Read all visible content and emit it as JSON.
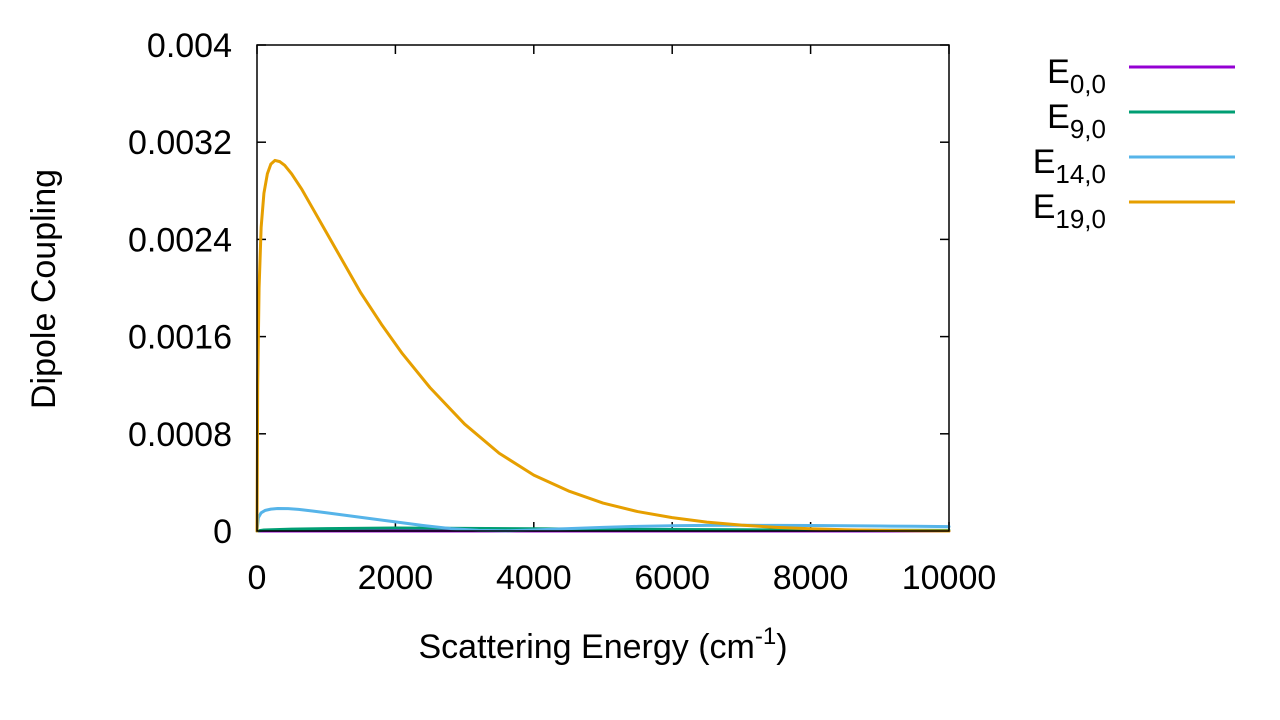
{
  "chart_data": {
    "type": "line",
    "xlabel": "Scattering Energy (cm",
    "xlabel_sup": "-1",
    "xlabel_close": ")",
    "ylabel": "Dipole Coupling",
    "xlim": [
      0,
      10000
    ],
    "ylim": [
      0,
      0.004
    ],
    "xticks": [
      {
        "value": 0,
        "label": "0"
      },
      {
        "value": 2000,
        "label": "2000"
      },
      {
        "value": 4000,
        "label": "4000"
      },
      {
        "value": 6000,
        "label": "6000"
      },
      {
        "value": 8000,
        "label": "8000"
      },
      {
        "value": 10000,
        "label": "10000"
      }
    ],
    "yticks": [
      {
        "value": 0,
        "label": "0"
      },
      {
        "value": 0.0008,
        "label": "0.0008"
      },
      {
        "value": 0.0016,
        "label": "0.0016"
      },
      {
        "value": 0.0024,
        "label": "0.0024"
      },
      {
        "value": 0.0032,
        "label": "0.0032"
      },
      {
        "value": 0.004,
        "label": "0.004"
      }
    ],
    "legend_position": "outside-right-top",
    "series": [
      {
        "name": "E0,0",
        "main": "E",
        "sub": "0,0",
        "color": "#9400d3",
        "x": [
          0,
          2000,
          4000,
          6000,
          8000,
          10000
        ],
        "y": [
          0.0,
          0.0,
          0.0,
          0.0,
          0.0,
          0.0
        ]
      },
      {
        "name": "E9,0",
        "main": "E",
        "sub": "9,0",
        "color": "#009e73",
        "x": [
          0,
          100,
          500,
          1000,
          2000,
          3000,
          4000,
          5000,
          6000,
          7000,
          8000,
          9000,
          10000
        ],
        "y": [
          0.0,
          8e-06,
          1.5e-05,
          2e-05,
          2.5e-05,
          2.2e-05,
          1.8e-05,
          1.4e-05,
          1.2e-05,
          1e-05,
          8e-06,
          6e-06,
          5e-06
        ]
      },
      {
        "name": "E14,0",
        "main": "E",
        "sub": "14,0",
        "color": "#56b4e9",
        "x": [
          0,
          20,
          60,
          120,
          200,
          300,
          450,
          600,
          800,
          1000,
          1300,
          1600,
          2000,
          2400,
          2800,
          3200,
          3600,
          4000,
          4500,
          5000,
          5500,
          6000,
          6500,
          7000,
          7500,
          8000,
          8500,
          9000,
          9500,
          10000
        ],
        "y": [
          0.0,
          0.00011,
          0.00015,
          0.00017,
          0.00018,
          0.000185,
          0.000184,
          0.000178,
          0.000165,
          0.00015,
          0.000128,
          0.000105,
          7.5e-05,
          4.5e-05,
          2e-05,
          5e-06,
          2e-06,
          8e-06,
          2e-05,
          3e-05,
          3.8e-05,
          4.3e-05,
          4.6e-05,
          4.7e-05,
          4.6e-05,
          4.5e-05,
          4.3e-05,
          4.1e-05,
          3.9e-05,
          3.6e-05
        ]
      },
      {
        "name": "E19,0",
        "main": "E",
        "sub": "19,0",
        "color": "#e69f00",
        "x": [
          0,
          10,
          30,
          60,
          100,
          150,
          200,
          260,
          330,
          400,
          500,
          650,
          800,
          1000,
          1250,
          1500,
          1800,
          2100,
          2500,
          3000,
          3500,
          4000,
          4500,
          5000,
          5500,
          6000,
          6500,
          7000,
          7500,
          8000,
          8500,
          9000,
          9500,
          10000
        ],
        "y": [
          0.0,
          0.0012,
          0.002,
          0.0025,
          0.00278,
          0.00294,
          0.00302,
          0.00305,
          0.00304,
          0.00301,
          0.00294,
          0.00281,
          0.00266,
          0.00246,
          0.00221,
          0.00196,
          0.0017,
          0.00146,
          0.00118,
          0.00088,
          0.00064,
          0.00046,
          0.00033,
          0.00023,
          0.00016,
          0.00011,
          7.3e-05,
          4.8e-05,
          3e-05,
          1.8e-05,
          1e-05,
          5e-06,
          2e-06,
          0.0
        ]
      }
    ]
  }
}
